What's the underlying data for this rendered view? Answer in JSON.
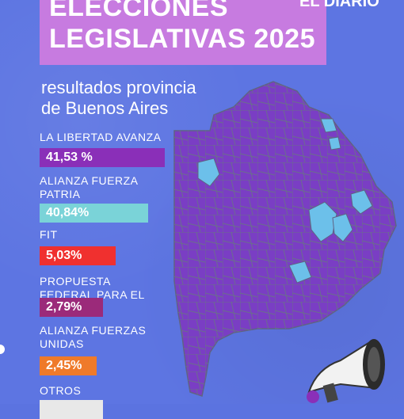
{
  "header": {
    "title_line1": "ELECCIONES",
    "title_line2": "LEGISLATIVAS 2025",
    "brand": "EL DIARIO"
  },
  "subtitle": "resultados provincia de Buenos Aires",
  "results": [
    {
      "name": "LA LIBERTAD AVANZA",
      "value": "41,53 %",
      "percent": 41.53,
      "color": "#8a2fb8"
    },
    {
      "name": "ALIANZA FUERZA PATRIA",
      "value": "40,84%",
      "percent": 40.84,
      "color": "#7ad3d8"
    },
    {
      "name": "FIT",
      "value": "5,03%",
      "percent": 5.03,
      "color": "#f0302f"
    },
    {
      "name": "PROPUESTA FEDERAL PARA EL CAMBIO",
      "value": "2,79%",
      "percent": 2.79,
      "color": "#9b2a7a"
    },
    {
      "name": "ALIANZA FUERZAS UNIDAS",
      "value": "2,45%",
      "percent": 2.45,
      "color": "#ef7a2a"
    },
    {
      "name": "OTROS",
      "value": "",
      "percent": null,
      "color": "#e8e8e8"
    }
  ],
  "colors": {
    "background": "#5d75e2",
    "title_box": "#c77be0",
    "map_main": "#7a3ec4",
    "map_secondary": "#6cc0ea"
  }
}
